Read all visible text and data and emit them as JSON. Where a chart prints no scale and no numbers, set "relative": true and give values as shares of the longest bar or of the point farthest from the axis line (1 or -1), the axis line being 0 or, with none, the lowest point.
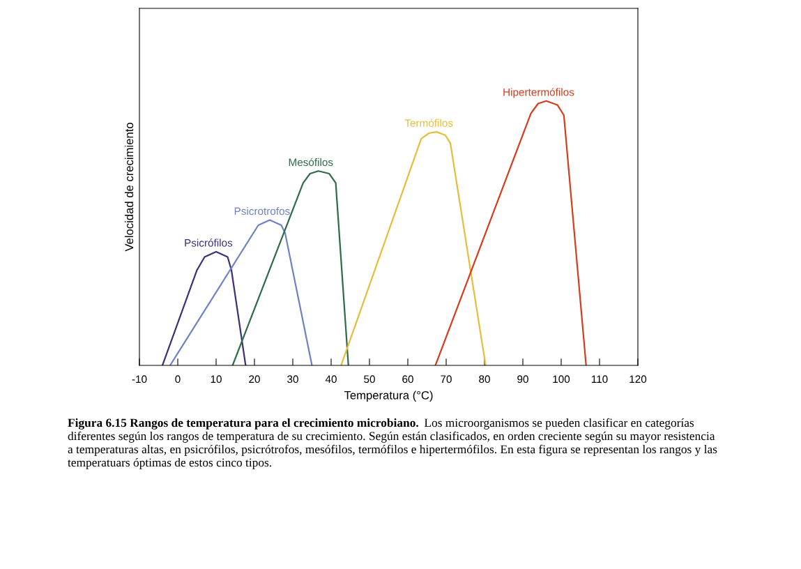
{
  "chart_data": {
    "type": "line",
    "relative": true,
    "xlabel": "Temperatura (°C)",
    "ylabel": "Velocidad de crecimiento",
    "xlim": [
      -10,
      120
    ],
    "xticks": [
      -10,
      0,
      10,
      20,
      30,
      40,
      50,
      60,
      70,
      80,
      90,
      100,
      110,
      120
    ],
    "grid": false,
    "legend": false,
    "marker": "none",
    "line_style": "solid",
    "series": [
      {
        "name": "Psicrófilos",
        "color": "#3d2f78",
        "x": [
          -4,
          5,
          7,
          10,
          13,
          14,
          17.7
        ],
        "values": [
          0,
          0.36,
          0.41,
          0.43,
          0.41,
          0.36,
          0
        ]
      },
      {
        "name": "Psicrotrofos",
        "color": "#6b82c6",
        "x": [
          -2,
          21,
          24,
          27,
          28,
          35
        ],
        "values": [
          0,
          0.53,
          0.55,
          0.53,
          0.5,
          0
        ]
      },
      {
        "name": "Mesófilos",
        "color": "#2f6b48",
        "x": [
          14.3,
          32.7,
          34.5,
          36.7,
          39.5,
          41.2,
          44.5
        ],
        "values": [
          0,
          0.69,
          0.725,
          0.735,
          0.725,
          0.69,
          0
        ]
      },
      {
        "name": "Termófilos",
        "color": "#e6be3c",
        "x": [
          42.6,
          63.5,
          65.5,
          67.5,
          69.8,
          71.1,
          80.3
        ],
        "values": [
          0,
          0.857,
          0.878,
          0.883,
          0.87,
          0.84,
          0
        ]
      },
      {
        "name": "Hipertermófilos",
        "color": "#d63c1e",
        "x": [
          67.2,
          92.1,
          94,
          96.1,
          99,
          100.7,
          106.5
        ],
        "values": [
          0,
          0.953,
          0.99,
          1,
          0.985,
          0.946,
          0
        ]
      }
    ],
    "annotations": [
      "Figura 6.15",
      "Rangos de temperatura para el crecimiento microbiano.",
      "Los microorganismos se pueden clasificar en categorías diferentes según los rangos de temperatura de su crecimiento. Según están clasificados, en orden creciente según su mayor resistencia a temperaturas altas, en psicrófilos, psicrótrofos, mesófilos, termófilos e hipertermófilos. En esta figura se representan los rangos y las temperatuars óptimas de estos cinco tipos."
    ]
  }
}
